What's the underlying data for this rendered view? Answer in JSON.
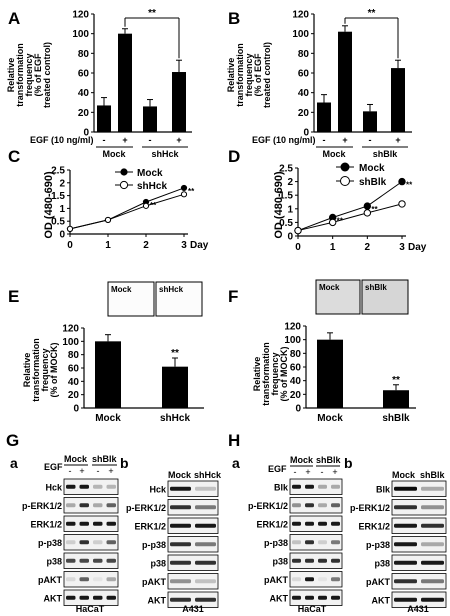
{
  "panel_letters": [
    "A",
    "B",
    "C",
    "D",
    "E",
    "F",
    "G",
    "H"
  ],
  "sub_letters": [
    "a",
    "b",
    "a",
    "b"
  ],
  "significance": "**",
  "egf_label": "EGF (10 ng/ml)",
  "egf_signs": [
    "-",
    "+",
    "-",
    "+"
  ],
  "sign_minus": "-",
  "sign_plus": "+",
  "ylabel_egf": [
    "Relative",
    "transformation",
    "frequency",
    "(% of EGF",
    "treated control)"
  ],
  "ylabel_mock": [
    "Relative",
    "transformation",
    "frequency",
    "(% of  MOCK)"
  ],
  "ylabel_od": "OD (480-690)",
  "x_day_unit": "Day",
  "mock_label": "Mock",
  "shhck_label": "shHck",
  "shblk_label": "shBlk",
  "western": {
    "G": {
      "a": {
        "cell_line": "HaCaT",
        "egf_label": "EGF",
        "col_labels": [
          "Mock",
          "shBlk"
        ],
        "signs": [
          "-",
          "+",
          "-",
          "+"
        ],
        "rows": [
          "Hck",
          "p-ERK1/2",
          "ERK1/2",
          "p-p38",
          "p38",
          "pAKT",
          "AKT"
        ]
      },
      "b": {
        "cell_line": "A431",
        "col_labels": [
          "Mock",
          "shHck"
        ],
        "rows": [
          "Hck",
          "p-ERK1/2",
          "ERK1/2",
          "p-p38",
          "p38",
          "pAKT",
          "AKT"
        ]
      }
    },
    "H": {
      "a": {
        "cell_line": "HaCaT",
        "egf_label": "EGF",
        "col_labels": [
          "Mock",
          "shBlk"
        ],
        "signs": [
          "-",
          "+",
          "-",
          "+"
        ],
        "rows": [
          "Blk",
          "p-ERK1/2",
          "ERK1/2",
          "p-p38",
          "p38",
          "pAKT",
          "AKT"
        ]
      },
      "b": {
        "cell_line": "A431",
        "col_labels": [
          "Mock",
          "shBlk"
        ],
        "rows": [
          "Blk",
          "p-ERK1/2",
          "ERK1/2",
          "p-p38",
          "p38",
          "pAKT",
          "AKT"
        ]
      }
    }
  },
  "chart_data": [
    {
      "panel": "A",
      "type": "bar",
      "categories": [
        "Mock -",
        "Mock +",
        "shHck -",
        "shHck +"
      ],
      "values": [
        27,
        100,
        26,
        61
      ],
      "errors": [
        8,
        5,
        7,
        12
      ],
      "ylim": [
        0,
        120
      ],
      "yticks": [
        0,
        20,
        40,
        60,
        80,
        100,
        120
      ],
      "groups": [
        "Mock",
        "shHck"
      ],
      "annotation": "**"
    },
    {
      "panel": "B",
      "type": "bar",
      "categories": [
        "Mock -",
        "Mock +",
        "shBlk -",
        "shBlk +"
      ],
      "values": [
        30,
        102,
        21,
        65
      ],
      "errors": [
        8,
        6,
        7,
        8
      ],
      "ylim": [
        0,
        120
      ],
      "yticks": [
        0,
        20,
        40,
        60,
        80,
        100,
        120
      ],
      "groups": [
        "Mock",
        "shBlk"
      ],
      "annotation": "**"
    },
    {
      "panel": "C",
      "type": "line",
      "x": [
        0,
        1,
        2,
        3
      ],
      "xticks": [
        0,
        1,
        2,
        3
      ],
      "xlabel": "Day",
      "ylim": [
        0,
        2.5
      ],
      "yticks": [
        0,
        0.5,
        1,
        1.5,
        2,
        2.5
      ],
      "series": [
        {
          "name": "Mock",
          "values": [
            0.2,
            0.55,
            1.25,
            1.8
          ],
          "errors": [
            0.02,
            0.05,
            0.08,
            0.1
          ]
        },
        {
          "name": "shHck",
          "values": [
            0.2,
            0.55,
            1.1,
            1.55
          ],
          "errors": [
            0.02,
            0.05,
            0.06,
            0.08
          ]
        }
      ],
      "annotation": "**"
    },
    {
      "panel": "D",
      "type": "line",
      "x": [
        0,
        1,
        2,
        3
      ],
      "xticks": [
        0,
        1,
        2,
        3
      ],
      "xlabel": "Day",
      "ylim": [
        0,
        2.5
      ],
      "yticks": [
        0,
        0.5,
        1,
        1.5,
        2,
        2.5
      ],
      "series": [
        {
          "name": "Mock",
          "values": [
            0.2,
            0.68,
            1.1,
            2.0
          ],
          "errors": [
            0.03,
            0.06,
            0.08,
            0.06
          ]
        },
        {
          "name": "shBlk",
          "values": [
            0.2,
            0.5,
            0.85,
            1.18
          ],
          "errors": [
            0.03,
            0.04,
            0.05,
            0.07
          ]
        }
      ],
      "annotation": "**"
    },
    {
      "panel": "E",
      "type": "bar",
      "categories": [
        "Mock",
        "shHck"
      ],
      "values": [
        100,
        62
      ],
      "errors": [
        10,
        13
      ],
      "ylim": [
        0,
        120
      ],
      "yticks": [
        0,
        20,
        40,
        60,
        80,
        100,
        120
      ],
      "annotation": "**"
    },
    {
      "panel": "F",
      "type": "bar",
      "categories": [
        "Mock",
        "shBlk"
      ],
      "values": [
        100,
        26
      ],
      "errors": [
        10,
        8
      ],
      "ylim": [
        0,
        120
      ],
      "yticks": [
        0,
        20,
        40,
        60,
        80,
        100,
        120
      ],
      "annotation": "**"
    }
  ]
}
